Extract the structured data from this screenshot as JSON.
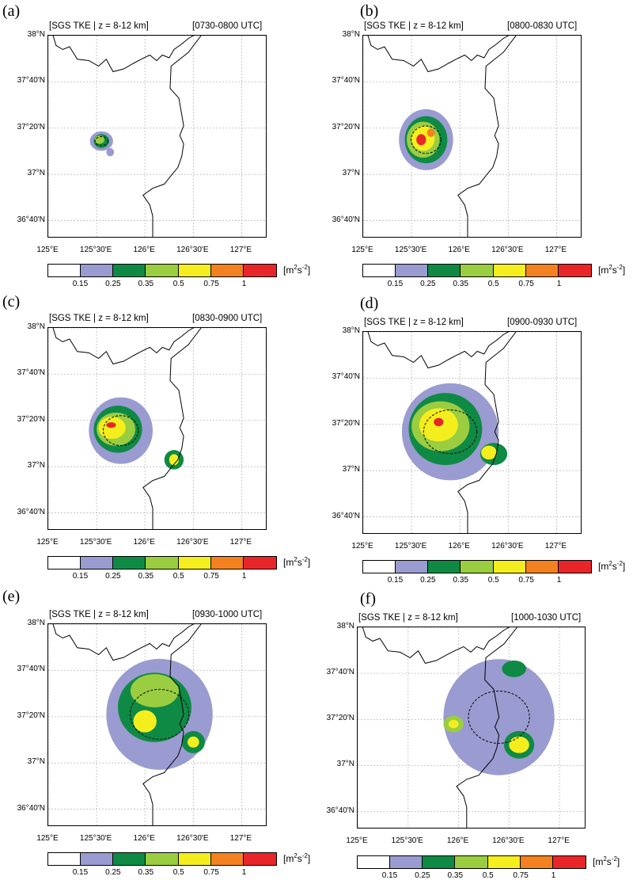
{
  "colorbar": {
    "colors": [
      "#ffffff",
      "#9a9bd0",
      "#0e8a45",
      "#9acd40",
      "#f5ee1f",
      "#f48120",
      "#e8262a"
    ],
    "ticks": [
      "0.15",
      "0.25",
      "0.35",
      "0.5",
      "0.75",
      "1"
    ],
    "unit_base": "[m",
    "unit_s": "s",
    "unit_exp1": "2",
    "unit_exp2": "-2",
    "unit_close": "]"
  },
  "axes": {
    "lat_ticks": [
      "38°N",
      "37°40'N",
      "37°20'N",
      "37°N",
      "36°40'N"
    ],
    "lon_ticks": [
      "125°E",
      "125°30'E",
      "126°E",
      "126°30'E",
      "127°E"
    ],
    "lon_range": [
      125.0,
      127.25
    ],
    "lat_range": [
      36.55,
      38.0
    ]
  },
  "panels": [
    {
      "letter": "(a)",
      "title": "[SGS TKE | z = 8-12 km]",
      "time": "[0730-0800 UTC]"
    },
    {
      "letter": "(b)",
      "title": "[SGS TKE | z = 8-12 km]",
      "time": "[0800-0830 UTC]"
    },
    {
      "letter": "(c)",
      "title": "[SGS TKE | z = 8-12 km]",
      "time": "[0830-0900 UTC]"
    },
    {
      "letter": "(d)",
      "title": "[SGS TKE | z = 8-12 km]",
      "time": "[0900-0930 UTC]"
    },
    {
      "letter": "(e)",
      "title": "[SGS TKE | z = 8-12 km]",
      "time": "[0930-1000 UTC]"
    },
    {
      "letter": "(f)",
      "title": "[SGS TKE | z = 8-12 km]",
      "time": "[1000-1030 UTC]"
    }
  ],
  "coastline": [
    [
      125.05,
      38.0
    ],
    [
      125.08,
      37.93
    ],
    [
      125.15,
      37.9
    ],
    [
      125.22,
      37.92
    ],
    [
      125.3,
      37.83
    ],
    [
      125.42,
      37.82
    ],
    [
      125.52,
      37.78
    ],
    [
      125.6,
      37.83
    ],
    [
      125.67,
      37.74
    ],
    [
      125.78,
      37.76
    ],
    [
      125.88,
      37.8
    ],
    [
      125.96,
      37.83
    ],
    [
      126.05,
      37.86
    ],
    [
      126.12,
      37.82
    ],
    [
      126.18,
      37.86
    ],
    [
      126.25,
      37.84
    ],
    [
      126.3,
      37.9
    ],
    [
      126.38,
      37.94
    ],
    [
      126.45,
      37.98
    ],
    [
      126.5,
      38.0
    ]
  ],
  "boundary": [
    [
      126.58,
      38.0
    ],
    [
      126.45,
      37.88
    ],
    [
      126.27,
      37.78
    ],
    [
      126.26,
      37.62
    ],
    [
      126.35,
      37.55
    ],
    [
      126.38,
      37.43
    ],
    [
      126.4,
      37.35
    ],
    [
      126.36,
      37.28
    ],
    [
      126.4,
      37.22
    ],
    [
      126.38,
      37.13
    ],
    [
      126.34,
      37.05
    ],
    [
      126.28,
      37.0
    ],
    [
      126.2,
      36.93
    ],
    [
      126.08,
      36.9
    ],
    [
      125.98,
      36.85
    ],
    [
      126.05,
      36.78
    ],
    [
      126.08,
      36.7
    ],
    [
      126.08,
      36.55
    ]
  ]
}
